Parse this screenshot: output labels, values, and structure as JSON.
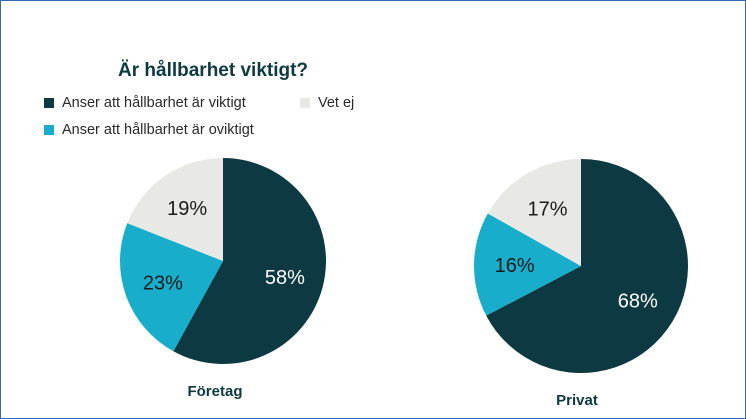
{
  "chart_data": {
    "type": "pie",
    "title": "Är hållbarhet viktigt?",
    "legend_placement": "top-left",
    "categories": [
      "Anser att hållbarhet är viktigt",
      "Anser att hållbarhet är oviktigt",
      "Vet ej"
    ],
    "colors": [
      "#0d3a42",
      "#18aecb",
      "#e8e8e4"
    ],
    "label_colors": [
      "#ffffff",
      "#1a1a1a",
      "#1a1a1a"
    ],
    "legend": [
      {
        "label": "Anser att hållbarhet är viktigt",
        "color": "#0d3a42"
      },
      {
        "label": "Vet ej",
        "color": "#e8e8e4"
      },
      {
        "label": "Anser att hållbarhet är oviktigt",
        "color": "#18aecb"
      }
    ],
    "pies": [
      {
        "name": "Företag",
        "values": [
          58,
          23,
          19
        ],
        "labels": [
          "58%",
          "23%",
          "19%"
        ]
      },
      {
        "name": "Privat",
        "values": [
          68,
          16,
          17
        ],
        "labels": [
          "68%",
          "16%",
          "17%"
        ]
      }
    ]
  }
}
